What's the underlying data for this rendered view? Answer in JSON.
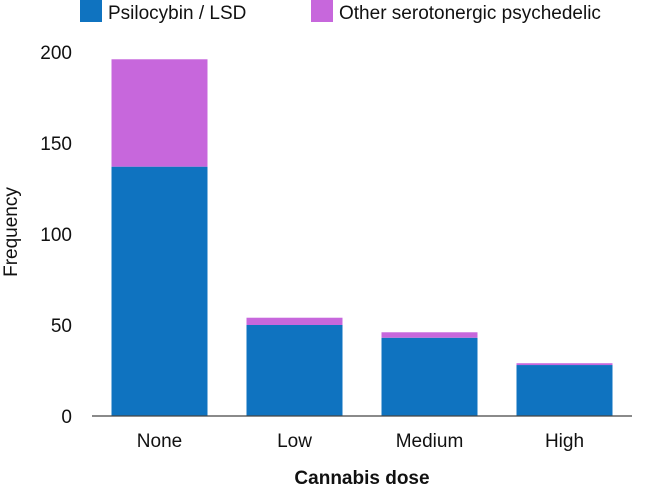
{
  "chart_data": {
    "type": "bar",
    "stacked": true,
    "title": "",
    "xlabel": "Cannabis dose",
    "ylabel": "Frequency",
    "categories": [
      "None",
      "Low",
      "Medium",
      "High"
    ],
    "series": [
      {
        "name": "Psilocybin / LSD",
        "color": "#0f73c0",
        "values": [
          137,
          50,
          43,
          28
        ]
      },
      {
        "name": "Other serotonergic psychedelic",
        "color": "#c767dc",
        "values": [
          59,
          4,
          3,
          1
        ]
      }
    ],
    "yticks": [
      "0",
      "50",
      "100",
      "150",
      "200"
    ],
    "ylim": [
      0,
      200
    ],
    "grid": false,
    "legend_position": "top"
  }
}
